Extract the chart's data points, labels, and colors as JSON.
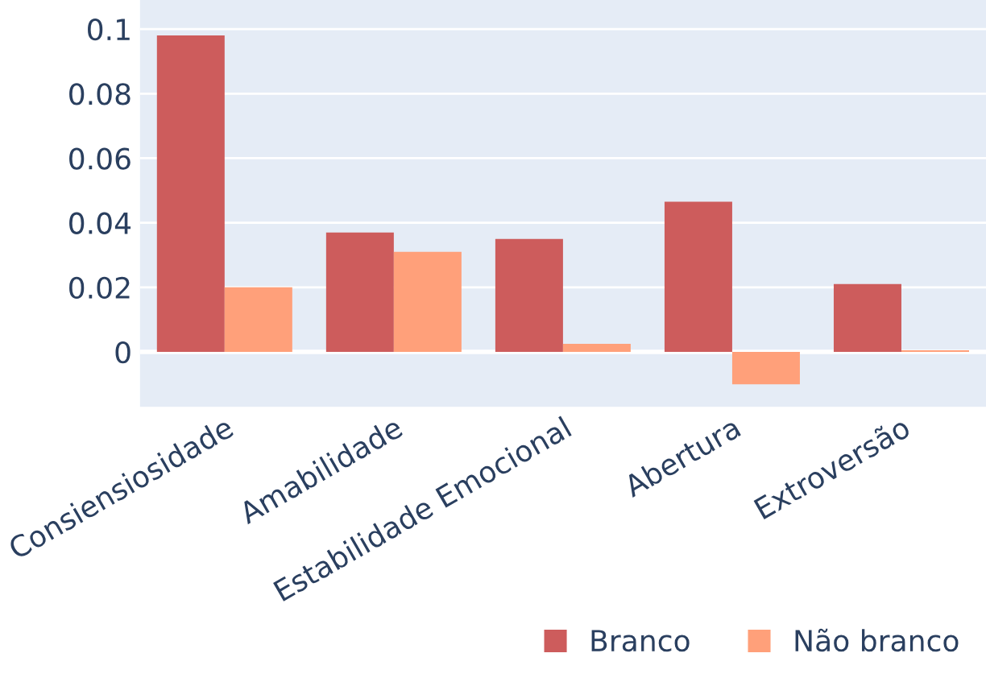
{
  "chart_data": {
    "type": "bar",
    "categories": [
      "Consiensiosidade",
      "Amabilidade",
      "Estabilidade Emocional",
      "Abertura",
      "Extroversão"
    ],
    "series": [
      {
        "name": "Branco",
        "color": "#cd5c5c",
        "values": [
          0.098,
          0.037,
          0.035,
          0.0465,
          0.021
        ]
      },
      {
        "name": "Não branco",
        "color": "#ffa07a",
        "values": [
          0.02,
          0.031,
          0.0025,
          -0.01,
          0.0005
        ]
      }
    ],
    "ylim": [
      -0.017,
      0.109
    ],
    "yticks": [
      0,
      0.02,
      0.04,
      0.06,
      0.08,
      0.1
    ],
    "grid": "y",
    "legend": "bottom right"
  }
}
